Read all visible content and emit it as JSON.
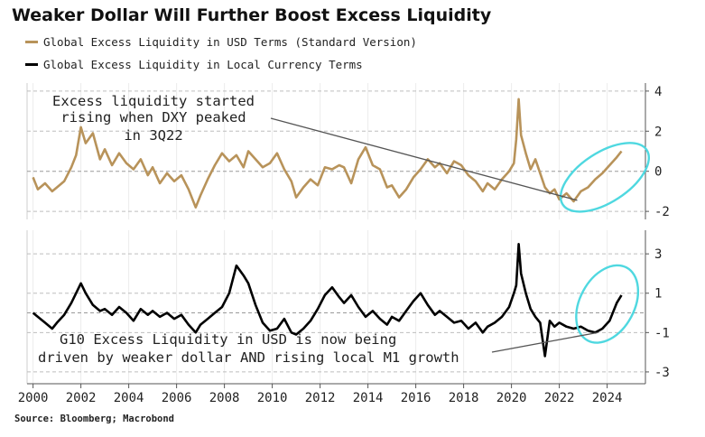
{
  "title": "Weaker Dollar Will Further Boost Excess Liquidity",
  "source": "Source: Bloomberg; Macrobond",
  "colors": {
    "usd_series": "#b8935a",
    "local_series": "#000000",
    "highlight": "#4fd8e0",
    "gridline": "#bdbdbd",
    "zero_line": "#9a9a9a"
  },
  "chart_data": [
    {
      "type": "line",
      "panel": "top",
      "xlim": [
        1999.75,
        2025.6
      ],
      "ylim": [
        -2.4,
        4.4
      ],
      "yticks": [
        4,
        2,
        0,
        -2
      ],
      "grid": true,
      "legend": "top-left",
      "series": [
        {
          "name": "Global Excess Liquidity in USD Terms (Standard Version)",
          "color": "#b8935a",
          "x": [
            2000.0,
            2000.2,
            2000.5,
            2000.8,
            2001.0,
            2001.3,
            2001.6,
            2001.8,
            2002.0,
            2002.2,
            2002.5,
            2002.8,
            2003.0,
            2003.3,
            2003.6,
            2003.9,
            2004.2,
            2004.5,
            2004.8,
            2005.0,
            2005.3,
            2005.6,
            2005.9,
            2006.2,
            2006.5,
            2006.8,
            2007.0,
            2007.3,
            2007.6,
            2007.9,
            2008.2,
            2008.5,
            2008.8,
            2009.0,
            2009.3,
            2009.6,
            2009.9,
            2010.2,
            2010.5,
            2010.8,
            2011.0,
            2011.3,
            2011.6,
            2011.9,
            2012.2,
            2012.5,
            2012.8,
            2013.0,
            2013.3,
            2013.6,
            2013.9,
            2014.2,
            2014.5,
            2014.8,
            2015.0,
            2015.3,
            2015.6,
            2015.9,
            2016.2,
            2016.5,
            2016.8,
            2017.0,
            2017.3,
            2017.6,
            2017.9,
            2018.2,
            2018.5,
            2018.8,
            2019.0,
            2019.3,
            2019.6,
            2019.9,
            2020.1,
            2020.2,
            2020.3,
            2020.4,
            2020.6,
            2020.8,
            2021.0,
            2021.2,
            2021.4,
            2021.6,
            2021.8,
            2022.0,
            2022.3,
            2022.6,
            2022.9,
            2023.2,
            2023.5,
            2023.8,
            2024.1,
            2024.4,
            2024.6
          ],
          "y": [
            -0.3,
            -0.9,
            -0.6,
            -1.0,
            -0.8,
            -0.5,
            0.2,
            0.8,
            2.2,
            1.4,
            1.9,
            0.6,
            1.1,
            0.3,
            0.9,
            0.4,
            0.1,
            0.6,
            -0.2,
            0.2,
            -0.6,
            -0.1,
            -0.5,
            -0.2,
            -0.9,
            -1.8,
            -1.2,
            -0.4,
            0.3,
            0.9,
            0.5,
            0.8,
            0.2,
            1.0,
            0.6,
            0.2,
            0.4,
            0.9,
            0.1,
            -0.5,
            -1.3,
            -0.8,
            -0.4,
            -0.7,
            0.2,
            0.1,
            0.3,
            0.2,
            -0.6,
            0.6,
            1.2,
            0.3,
            0.1,
            -0.8,
            -0.7,
            -1.3,
            -0.9,
            -0.3,
            0.1,
            0.6,
            0.2,
            0.4,
            -0.1,
            0.5,
            0.3,
            -0.2,
            -0.5,
            -1.0,
            -0.6,
            -0.9,
            -0.4,
            0.0,
            0.4,
            1.6,
            3.6,
            1.8,
            0.9,
            0.1,
            0.6,
            -0.1,
            -0.8,
            -1.1,
            -0.9,
            -1.4,
            -1.1,
            -1.5,
            -1.0,
            -0.8,
            -0.4,
            -0.1,
            0.3,
            0.7,
            1.0
          ]
        }
      ],
      "annotations": [
        {
          "lines": [
            "Excess liquidity started",
            "rising when DXY peaked",
            "in 3Q22"
          ],
          "points_to": {
            "x": 2022.75,
            "y": -1.45
          }
        }
      ],
      "highlight": {
        "center": {
          "x": 2023.9,
          "y": -0.3
        },
        "rx_years": 1.55,
        "ry_units": 2.0
      }
    },
    {
      "type": "line",
      "panel": "bottom",
      "xlim": [
        1999.75,
        2025.6
      ],
      "ylim": [
        -3.6,
        4.2
      ],
      "yticks": [
        3,
        1,
        -1,
        -3
      ],
      "grid": true,
      "series": [
        {
          "name": "Global Excess Liquidity in Local Currency Terms",
          "color": "#000000",
          "x": [
            2000.0,
            2000.2,
            2000.5,
            2000.8,
            2001.0,
            2001.3,
            2001.6,
            2001.8,
            2002.0,
            2002.2,
            2002.5,
            2002.8,
            2003.0,
            2003.3,
            2003.6,
            2003.9,
            2004.2,
            2004.5,
            2004.8,
            2005.0,
            2005.3,
            2005.6,
            2005.9,
            2006.2,
            2006.5,
            2006.8,
            2007.0,
            2007.3,
            2007.6,
            2007.9,
            2008.2,
            2008.5,
            2008.8,
            2009.0,
            2009.3,
            2009.6,
            2009.9,
            2010.2,
            2010.5,
            2010.8,
            2011.0,
            2011.3,
            2011.6,
            2011.9,
            2012.2,
            2012.5,
            2012.8,
            2013.0,
            2013.3,
            2013.6,
            2013.9,
            2014.2,
            2014.5,
            2014.8,
            2015.0,
            2015.3,
            2015.6,
            2015.9,
            2016.2,
            2016.5,
            2016.8,
            2017.0,
            2017.3,
            2017.6,
            2017.9,
            2018.2,
            2018.5,
            2018.8,
            2019.0,
            2019.3,
            2019.6,
            2019.9,
            2020.1,
            2020.2,
            2020.3,
            2020.4,
            2020.6,
            2020.8,
            2021.0,
            2021.2,
            2021.4,
            2021.6,
            2021.8,
            2022.0,
            2022.3,
            2022.6,
            2022.9,
            2023.2,
            2023.5,
            2023.8,
            2024.1,
            2024.4,
            2024.6
          ],
          "y": [
            0.0,
            -0.2,
            -0.5,
            -0.8,
            -0.5,
            -0.1,
            0.5,
            1.0,
            1.5,
            1.0,
            0.4,
            0.1,
            0.2,
            -0.1,
            0.3,
            0.0,
            -0.4,
            0.2,
            -0.1,
            0.1,
            -0.2,
            0.0,
            -0.3,
            -0.1,
            -0.6,
            -1.0,
            -0.6,
            -0.3,
            0.0,
            0.3,
            1.0,
            2.4,
            1.9,
            1.5,
            0.4,
            -0.5,
            -0.9,
            -0.8,
            -0.3,
            -1.0,
            -1.1,
            -0.8,
            -0.4,
            0.2,
            0.9,
            1.3,
            0.8,
            0.5,
            0.9,
            0.3,
            -0.2,
            0.1,
            -0.3,
            -0.6,
            -0.2,
            -0.4,
            0.1,
            0.6,
            1.0,
            0.4,
            -0.1,
            0.1,
            -0.2,
            -0.5,
            -0.4,
            -0.8,
            -0.5,
            -1.0,
            -0.7,
            -0.5,
            -0.2,
            0.3,
            1.0,
            1.4,
            3.5,
            2.0,
            1.0,
            0.2,
            -0.2,
            -0.5,
            -2.2,
            -0.4,
            -0.7,
            -0.5,
            -0.7,
            -0.8,
            -0.7,
            -0.9,
            -1.0,
            -0.8,
            -0.4,
            0.5,
            0.9
          ]
        }
      ],
      "annotations": [
        {
          "lines": [
            "G10 Excess Liquidity in USD is now being",
            "driven by weaker dollar AND rising local M1 growth"
          ],
          "points_to": {
            "x": 2023.6,
            "y": -1.0
          }
        }
      ],
      "highlight": {
        "center": {
          "x": 2024.0,
          "y": 0.45
        },
        "rx_years": 1.2,
        "ry_units": 2.0
      }
    }
  ],
  "x_axis": {
    "ticks": [
      2000,
      2002,
      2004,
      2006,
      2008,
      2010,
      2012,
      2014,
      2016,
      2018,
      2020,
      2022,
      2024
    ],
    "labels": [
      "2000",
      "2002",
      "2004",
      "2006",
      "2008",
      "2010",
      "2012",
      "2014",
      "2016",
      "2018",
      "2020",
      "2022",
      "2024"
    ]
  }
}
